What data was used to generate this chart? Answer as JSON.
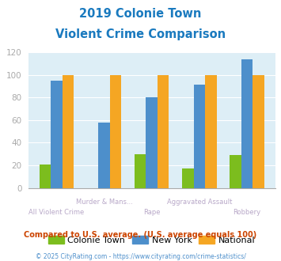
{
  "title_line1": "2019 Colonie Town",
  "title_line2": "Violent Crime Comparison",
  "title_color": "#1a7abf",
  "categories": [
    "All Violent Crime",
    "Murder & Mans...",
    "Rape",
    "Aggravated Assault",
    "Robbery"
  ],
  "top_labels": [
    "",
    "Murder & Mans...",
    "",
    "Aggravated Assault",
    ""
  ],
  "bottom_labels": [
    "All Violent Crime",
    "",
    "Rape",
    "",
    "Robbery"
  ],
  "colonie_town": [
    21,
    0,
    30,
    17,
    29
  ],
  "new_york": [
    95,
    58,
    80,
    91,
    114
  ],
  "national": [
    100,
    100,
    100,
    100,
    100
  ],
  "colonie_color": "#7cbd1e",
  "ny_color": "#4d8fcb",
  "national_color": "#f5a623",
  "bg_color": "#ddeef6",
  "ylim": [
    0,
    120
  ],
  "yticks": [
    0,
    20,
    40,
    60,
    80,
    100,
    120
  ],
  "legend_labels": [
    "Colonie Town",
    "New York",
    "National"
  ],
  "footnote1": "Compared to U.S. average. (U.S. average equals 100)",
  "footnote2": "© 2025 CityRating.com - https://www.cityrating.com/crime-statistics/",
  "footnote1_color": "#cc4400",
  "footnote2_color": "#4d8fcb",
  "tick_color": "#aaaaaa",
  "xlabel_color": "#b8a8c8"
}
